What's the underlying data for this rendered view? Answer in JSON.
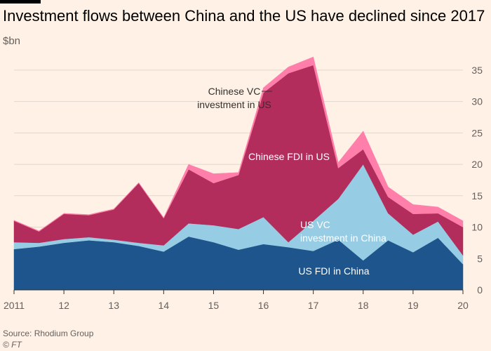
{
  "title": "Investment flows between China and the US have declined since 2017",
  "unit": "$bn",
  "source": "Source: Rhodium Group",
  "credit": "© FT",
  "chart_data": {
    "type": "area",
    "stacked": true,
    "x": [
      2011,
      2011.5,
      2012,
      2012.5,
      2013,
      2013.5,
      2014,
      2014.5,
      2015,
      2015.5,
      2016,
      2016.5,
      2017,
      2017.5,
      2018,
      2018.5,
      2019,
      2019.5,
      2020
    ],
    "x_ticks": [
      2011,
      2012,
      2013,
      2014,
      2015,
      2016,
      2017,
      2018,
      2019,
      2020
    ],
    "x_tick_labels": [
      "2011",
      "12",
      "13",
      "14",
      "15",
      "16",
      "17",
      "18",
      "19",
      "20"
    ],
    "ylim": [
      0,
      37
    ],
    "y_ticks": [
      0,
      5,
      10,
      15,
      20,
      25,
      30,
      35
    ],
    "grid": true,
    "series": [
      {
        "name": "US FDI in China",
        "color": "#1e558c",
        "values": [
          6.5,
          6.9,
          7.5,
          7.9,
          7.6,
          7.0,
          6.1,
          8.5,
          7.6,
          6.4,
          7.3,
          6.8,
          6.2,
          8.0,
          4.7,
          7.9,
          6.0,
          8.3,
          4.1
        ]
      },
      {
        "name": "US VC investment in China",
        "color": "#96cce4",
        "values": [
          1.1,
          0.6,
          0.6,
          0.5,
          0.4,
          0.5,
          1.0,
          2.1,
          2.7,
          3.3,
          4.3,
          0.8,
          4.8,
          6.5,
          15.3,
          4.3,
          2.8,
          2.6,
          1.4
        ]
      },
      {
        "name": "Chinese FDI in US",
        "color": "#b22d5b",
        "values": [
          3.4,
          1.8,
          4.0,
          3.5,
          4.8,
          9.5,
          4.3,
          8.6,
          6.7,
          8.6,
          19.8,
          26.9,
          24.8,
          4.9,
          2.4,
          2.6,
          3.3,
          1.3,
          4.5
        ]
      },
      {
        "name": "Chinese VC investment in US",
        "color": "#ff7faa",
        "values": [
          0.1,
          0.1,
          0.1,
          0.1,
          0.1,
          0.1,
          0.1,
          0.8,
          1.5,
          0.4,
          0.8,
          1.0,
          1.3,
          0.9,
          2.9,
          1.6,
          1.5,
          1.0,
          1.0
        ]
      }
    ],
    "annotations": [
      {
        "lines": [
          "Chinese VC",
          "investment in US"
        ],
        "color": "#33302e"
      },
      {
        "lines": [
          "Chinese FDI in US"
        ],
        "color": "#ffffff"
      },
      {
        "lines": [
          "US VC",
          "investment in China"
        ],
        "color": "#ffffff"
      },
      {
        "lines": [
          "US FDI in China"
        ],
        "color": "#ffffff"
      }
    ]
  }
}
